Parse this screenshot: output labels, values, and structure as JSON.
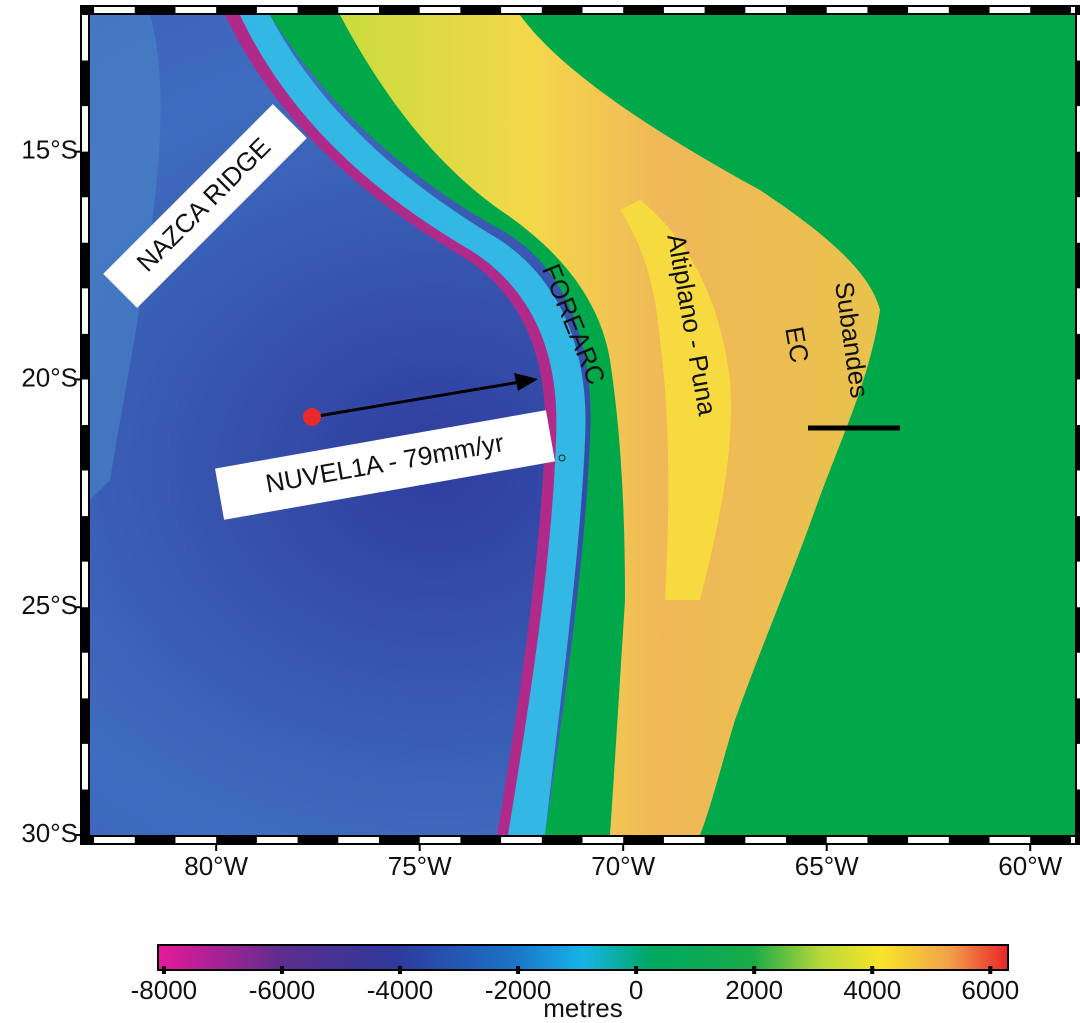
{
  "map": {
    "lon_lim": [
      -83.1,
      -58.9
    ],
    "lat_lim": [
      -12,
      -30
    ],
    "lon_ticks": [
      {
        "value": -80,
        "label": "80°W"
      },
      {
        "value": -75,
        "label": "75°W"
      },
      {
        "value": -70,
        "label": "70°W"
      },
      {
        "value": -65,
        "label": "65°W"
      },
      {
        "value": -60,
        "label": "60°W"
      }
    ],
    "lat_ticks": [
      {
        "value": -15,
        "label": "15°S"
      },
      {
        "value": -20,
        "label": "20°S"
      },
      {
        "value": -25,
        "label": "25°S"
      },
      {
        "value": -30,
        "label": "30°S"
      }
    ],
    "labels": {
      "ridge": "NAZCA RIDGE",
      "velocity": "NUVEL1A - 79mm/yr",
      "forearc": "FOREARC",
      "altiplano": "Altiplano - Puna",
      "ec": "EC",
      "subandes": "Subandes"
    }
  },
  "colorbar": {
    "lim": [
      -8100,
      6300
    ],
    "ticks": [
      -8000,
      -6000,
      -4000,
      -2000,
      0,
      2000,
      4000,
      6000
    ],
    "unit": "metres"
  }
}
